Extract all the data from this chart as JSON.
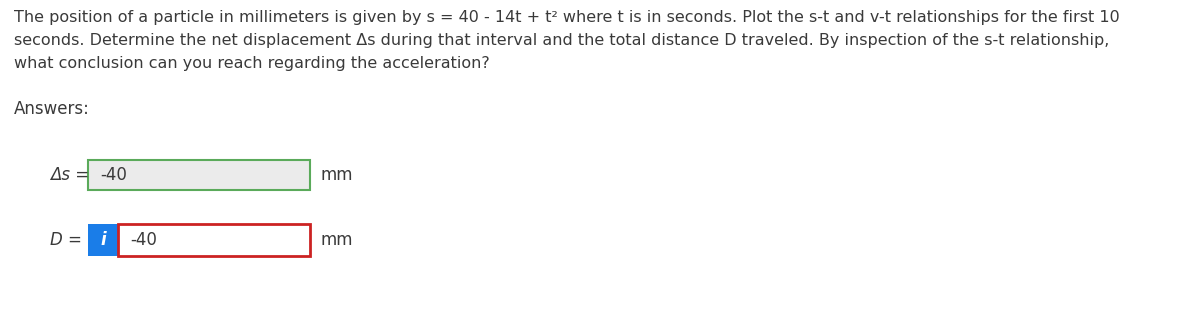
{
  "background_color": "#ffffff",
  "line1": "The position of a particle in millimeters is given by s = 40 - 14t + t² where t is in seconds. Plot the s-t and v-t relationships for the first 10",
  "line2": "seconds. Determine the net displacement Δs during that interval and the total distance D traveled. By inspection of the s-t relationship,",
  "line3": "what conclusion can you reach regarding the acceleration?",
  "answers_label": "Answers:",
  "row1_label": "Δs =",
  "row1_value": "-40",
  "row1_unit": "mm",
  "row1_box_facecolor": "#ebebeb",
  "row1_box_edgecolor": "#5aaa5a",
  "row2_label": "D =",
  "row2_value": "-40",
  "row2_unit": "mm",
  "row2_box_facecolor": "#ffffff",
  "row2_box_edgecolor": "#cc2222",
  "icon_facecolor": "#1a7de8",
  "icon_text": "i",
  "icon_text_color": "#ffffff",
  "text_color": "#3a3a3a",
  "font_size_paragraph": 11.5,
  "font_size_answers": 12,
  "font_size_labels": 12,
  "font_size_values": 12
}
